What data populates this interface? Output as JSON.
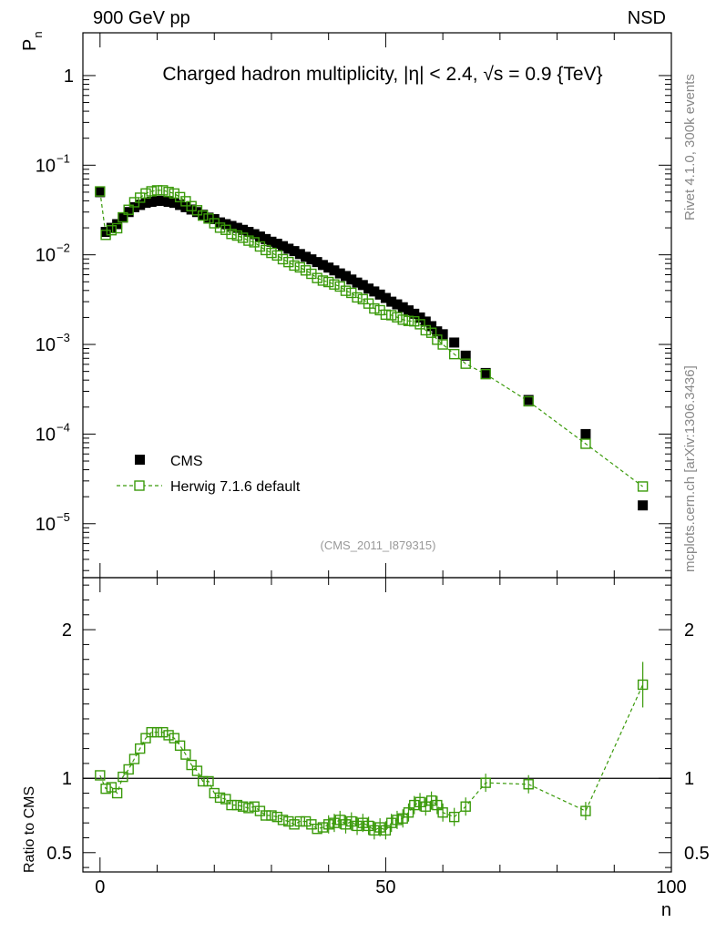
{
  "header": {
    "left_label": "900 GeV pp",
    "right_label": "NSD",
    "watermark": "(CMS_2011_I879315)",
    "side_text_top": "Rivet 4.1.0,  300k events",
    "side_text_bottom": "mcplots.cern.ch [arXiv:1306.3436]"
  },
  "chart_data": {
    "type": "scatter",
    "title": "Charged hadron multiplicity, |η| < 2.4, √s = 0.9 {TeV}",
    "xlabel": "n",
    "ylabel": "P_n",
    "ratio_ylabel": "Ratio to CMS",
    "xlim": [
      -3,
      100
    ],
    "ylim": [
      2.5e-06,
      3
    ],
    "ratio_ylim": [
      0.37,
      2.35
    ],
    "x_ticks": [
      "0",
      "50",
      "100"
    ],
    "y_ticks": [
      {
        "value": 1,
        "base": "1",
        "exp": ""
      },
      {
        "value": 0.1,
        "base": "10",
        "exp": "−1"
      },
      {
        "value": 0.01,
        "base": "10",
        "exp": "−2"
      },
      {
        "value": 0.001,
        "base": "10",
        "exp": "−3"
      },
      {
        "value": 0.0001,
        "base": "10",
        "exp": "−4"
      },
      {
        "value": 1e-05,
        "base": "10",
        "exp": "−5"
      }
    ],
    "ratio_ticks": [
      {
        "value": 2,
        "label": "2"
      },
      {
        "value": 1,
        "label": "1"
      },
      {
        "value": 0.5,
        "label": "0.5"
      }
    ],
    "series": [
      {
        "name": "CMS",
        "color": "#000000",
        "marker": "filled-square",
        "x": [
          0,
          1,
          2,
          3,
          4,
          5,
          6,
          7,
          8,
          9,
          10,
          11,
          12,
          13,
          14,
          15,
          16,
          17,
          18,
          19,
          20,
          21,
          22,
          23,
          24,
          25,
          26,
          27,
          28,
          29,
          30,
          31,
          32,
          33,
          34,
          35,
          36,
          37,
          38,
          39,
          40,
          41,
          42,
          43,
          44,
          45,
          46,
          47,
          48,
          49,
          50,
          51,
          52,
          53,
          54,
          55,
          56,
          57,
          58,
          59,
          60,
          62,
          64,
          67.5,
          75,
          85,
          95
        ],
        "values": [
          0.05,
          0.018,
          0.02,
          0.022,
          0.026,
          0.03,
          0.034,
          0.036,
          0.038,
          0.039,
          0.04,
          0.04,
          0.039,
          0.038,
          0.036,
          0.034,
          0.032,
          0.03,
          0.028,
          0.026,
          0.025,
          0.023,
          0.022,
          0.021,
          0.02,
          0.019,
          0.018,
          0.017,
          0.016,
          0.015,
          0.014,
          0.0133,
          0.0125,
          0.0117,
          0.011,
          0.0102,
          0.0095,
          0.0089,
          0.0083,
          0.0077,
          0.0072,
          0.0067,
          0.0062,
          0.0058,
          0.0053,
          0.0049,
          0.0046,
          0.0042,
          0.0039,
          0.0036,
          0.0033,
          0.003,
          0.0028,
          0.0026,
          0.0024,
          0.0022,
          0.002,
          0.0018,
          0.0016,
          0.0014,
          0.0013,
          0.00105,
          0.00075,
          0.00048,
          0.00024,
          0.0001,
          1.6e-05
        ]
      },
      {
        "name": "Herwig 7.1.6 default",
        "color": "#3a9a0a",
        "marker": "open-square-dashed-line",
        "x": [
          0,
          1,
          2,
          3,
          4,
          5,
          6,
          7,
          8,
          9,
          10,
          11,
          12,
          13,
          14,
          15,
          16,
          17,
          18,
          19,
          20,
          21,
          22,
          23,
          24,
          25,
          26,
          27,
          28,
          29,
          30,
          31,
          32,
          33,
          34,
          35,
          36,
          37,
          38,
          39,
          40,
          41,
          42,
          43,
          44,
          45,
          46,
          47,
          48,
          49,
          50,
          51,
          52,
          53,
          54,
          55,
          56,
          57,
          58,
          59,
          60,
          62,
          64,
          67.5,
          75,
          85,
          95
        ],
        "values": [
          0.051,
          0.0167,
          0.0188,
          0.0198,
          0.0262,
          0.0318,
          0.0386,
          0.0434,
          0.0484,
          0.0511,
          0.0524,
          0.0524,
          0.0503,
          0.0483,
          0.044,
          0.0396,
          0.0349,
          0.0314,
          0.0274,
          0.0254,
          0.0225,
          0.0201,
          0.019,
          0.0171,
          0.0164,
          0.0155,
          0.0144,
          0.0138,
          0.0124,
          0.0113,
          0.0105,
          0.00984,
          0.00894,
          0.0083,
          0.00759,
          0.00724,
          0.0067,
          0.00614,
          0.00551,
          0.00516,
          0.00497,
          0.00467,
          0.00443,
          0.00397,
          0.00376,
          0.00335,
          0.0032,
          0.00286,
          0.00252,
          0.00241,
          0.00215,
          0.00212,
          0.00201,
          0.00189,
          0.00183,
          0.00181,
          0.00168,
          0.00144,
          0.00135,
          0.00113,
          0.001,
          0.00078,
          0.00061,
          0.000466,
          0.000232,
          7.8e-05,
          2.6e-05
        ],
        "ratio": [
          1.02,
          0.93,
          0.94,
          0.9,
          1.01,
          1.06,
          1.13,
          1.2,
          1.27,
          1.31,
          1.31,
          1.31,
          1.29,
          1.27,
          1.22,
          1.16,
          1.09,
          1.05,
          0.98,
          0.98,
          0.9,
          0.87,
          0.86,
          0.82,
          0.82,
          0.81,
          0.8,
          0.81,
          0.78,
          0.75,
          0.75,
          0.74,
          0.72,
          0.71,
          0.69,
          0.71,
          0.71,
          0.69,
          0.66,
          0.67,
          0.69,
          0.7,
          0.72,
          0.69,
          0.71,
          0.68,
          0.7,
          0.68,
          0.65,
          0.67,
          0.65,
          0.7,
          0.72,
          0.73,
          0.77,
          0.82,
          0.84,
          0.81,
          0.85,
          0.82,
          0.77,
          0.74,
          0.81,
          0.97,
          0.96,
          0.78,
          1.63
        ]
      }
    ]
  }
}
